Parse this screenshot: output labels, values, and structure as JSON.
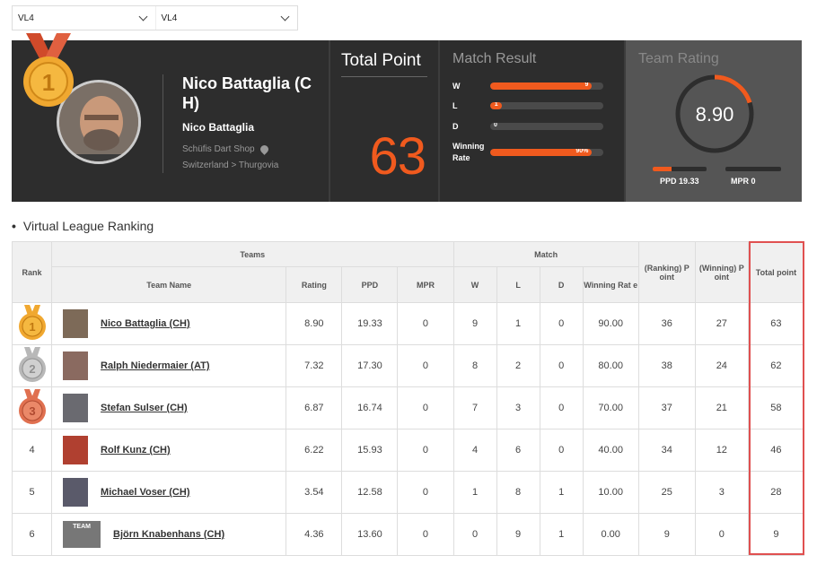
{
  "filters": {
    "league": "VL4",
    "division": "VL4"
  },
  "player": {
    "rank": "1",
    "name": "Nico Battaglia (C H)",
    "subname": "Nico Battaglia",
    "shop": "Schüfis Dart Shop",
    "location": "Switzerland > Thurgovia"
  },
  "total_point": {
    "title": "Total Point",
    "value": "63"
  },
  "match_result": {
    "title": "Match Result",
    "rows": [
      {
        "label": "W",
        "value": "9",
        "fraction": 0.9
      },
      {
        "label": "L",
        "value": "1",
        "fraction": 0.1
      },
      {
        "label": "D",
        "value": "0",
        "fraction": 0
      },
      {
        "label": "Winning Rate",
        "value": "90%",
        "fraction": 0.9
      }
    ]
  },
  "team_rating": {
    "title": "Team Rating",
    "value": "8.90",
    "fraction": 0.2,
    "ppd": "PPD 19.33",
    "ppd_fraction": 0.35,
    "mpr": "MPR 0",
    "mpr_fraction": 0
  },
  "section_title": "Virtual League Ranking",
  "colors": {
    "accent": "#f05a1e",
    "dark": "#2d2d2d",
    "gold": "#f0a830",
    "silver": "#c8c8c8",
    "bronze": "#e07050",
    "highlight": "#e05050"
  },
  "table": {
    "group_headers": {
      "rank": "Rank",
      "teams": "Teams",
      "match": "Match",
      "ranking_point": "(Ranking) P oint",
      "winning_point": "(Winning) P oint",
      "total_point": "Total point"
    },
    "columns": {
      "team_name": "Team Name",
      "rating": "Rating",
      "ppd": "PPD",
      "mpr": "MPR",
      "w": "W",
      "l": "L",
      "d": "D",
      "winning_rate": "Winning Rat e"
    },
    "rows": [
      {
        "rank": "1",
        "name": "Nico Battaglia (CH)",
        "rating": "8.90",
        "ppd": "19.33",
        "mpr": "0",
        "w": "9",
        "l": "1",
        "d": "0",
        "rate": "90.00",
        "rp": "36",
        "wp": "27",
        "tp": "63"
      },
      {
        "rank": "2",
        "name": "Ralph Niedermaier (AT)",
        "rating": "7.32",
        "ppd": "17.30",
        "mpr": "0",
        "w": "8",
        "l": "2",
        "d": "0",
        "rate": "80.00",
        "rp": "38",
        "wp": "24",
        "tp": "62"
      },
      {
        "rank": "3",
        "name": "Stefan Sulser (CH)",
        "rating": "6.87",
        "ppd": "16.74",
        "mpr": "0",
        "w": "7",
        "l": "3",
        "d": "0",
        "rate": "70.00",
        "rp": "37",
        "wp": "21",
        "tp": "58"
      },
      {
        "rank": "4",
        "name": "Rolf Kunz (CH)",
        "rating": "6.22",
        "ppd": "15.93",
        "mpr": "0",
        "w": "4",
        "l": "6",
        "d": "0",
        "rate": "40.00",
        "rp": "34",
        "wp": "12",
        "tp": "46"
      },
      {
        "rank": "5",
        "name": "Michael Voser (CH)",
        "rating": "3.54",
        "ppd": "12.58",
        "mpr": "0",
        "w": "1",
        "l": "8",
        "d": "1",
        "rate": "10.00",
        "rp": "25",
        "wp": "3",
        "tp": "28"
      },
      {
        "rank": "6",
        "name": "Björn Knabenhans (CH)",
        "rating": "4.36",
        "ppd": "13.60",
        "mpr": "0",
        "w": "0",
        "l": "9",
        "d": "1",
        "rate": "0.00",
        "rp": "9",
        "wp": "0",
        "tp": "9",
        "thumb_text": "TEAM"
      }
    ]
  }
}
